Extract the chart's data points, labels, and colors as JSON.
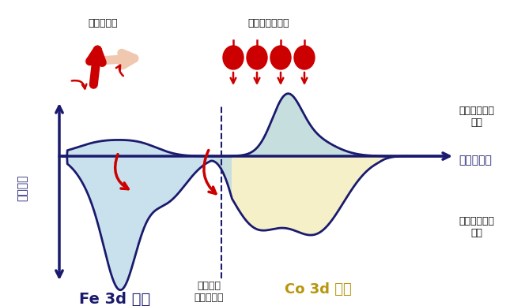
{
  "bg_color": "#ffffff",
  "fe_label": "Fe 3d 準位",
  "co_label": "Co 3d 準位",
  "fermi_label": "フェルミ\nエネルギー",
  "energy_label": "エネルギー",
  "dos_label": "状態密度",
  "up_spin_label": "上向きスピン\n状態",
  "down_spin_label": "下向きスピン\n状態",
  "anisotropy_label": "磁気異方性",
  "polarization_label": "完全スピン偏極",
  "navy": "#1a1a6e",
  "light_blue": "#b8d8e8",
  "light_yellow": "#f5f0c8",
  "dark_yellow": "#b8960c",
  "red": "#cc0000",
  "pink_arrow": "#f0c8b0"
}
